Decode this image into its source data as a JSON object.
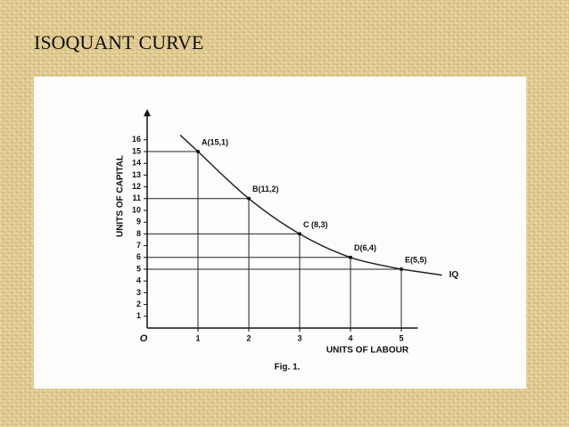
{
  "chart_data": {
    "type": "line",
    "title": "ISOQUANT CURVE",
    "x_label": "UNITS OF LABOUR",
    "y_label": "UNITS OF CAPITAL",
    "caption": "Fig. 1.",
    "x": [
      1,
      2,
      3,
      4,
      5
    ],
    "y": [
      15,
      11,
      8,
      6,
      5
    ],
    "point_labels": [
      "A(15,1)",
      "B(11,2)",
      "C (8,3)",
      "D(6,4)",
      "E(5,5)"
    ],
    "curve_label": "IQ",
    "color": "#222222",
    "xlim": [
      0,
      5.5
    ],
    "ylim": [
      0,
      18
    ],
    "xticks": [
      {
        "value": 0,
        "label": "O"
      },
      1,
      2,
      3,
      4,
      5
    ],
    "yticks": [
      1,
      2,
      3,
      4,
      5,
      6,
      7,
      8,
      9,
      10,
      11,
      12,
      13,
      14,
      15,
      16
    ]
  }
}
